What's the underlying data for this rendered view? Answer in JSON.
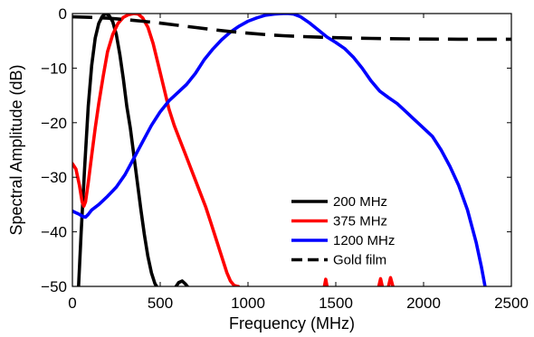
{
  "chart_data": {
    "type": "line",
    "xlabel": "Frequency (MHz)",
    "ylabel": "Spectral Amplitude (dB)",
    "xlim": [
      0,
      2500
    ],
    "ylim": [
      -50,
      0
    ],
    "xticks": [
      0,
      500,
      1000,
      1500,
      2000,
      2500
    ],
    "yticks": [
      0,
      -10,
      -20,
      -30,
      -40,
      -50
    ],
    "xtick_labels": [
      "0",
      "500",
      "1000",
      "1500",
      "2000",
      "2500"
    ],
    "ytick_labels": [
      "0",
      "−10",
      "−20",
      "−30",
      "−40",
      "−50"
    ],
    "grid": false,
    "legend_position": "bottom-right",
    "series": [
      {
        "name": "200 MHz",
        "color": "#000000",
        "dash": "solid",
        "x": [
          35,
          50,
          70,
          90,
          110,
          130,
          150,
          170,
          190,
          210,
          230,
          250,
          270,
          290,
          310,
          330,
          350,
          370,
          390,
          410,
          430,
          450,
          470,
          480
        ],
        "y": [
          -50,
          -40,
          -28,
          -17,
          -9.5,
          -4.5,
          -1.8,
          -0.5,
          0,
          -0.4,
          -1.5,
          -3.8,
          -7.5,
          -12,
          -17,
          -21,
          -26,
          -31,
          -36,
          -40.5,
          -44.5,
          -47.5,
          -49.5,
          -50
        ]
      },
      {
        "name": "200 MHz",
        "color": "#000000",
        "dash": "solid",
        "x": [
          590,
          605,
          625,
          645,
          655
        ],
        "y": [
          -50,
          -49.3,
          -49,
          -49.6,
          -50
        ]
      },
      {
        "name": "375 MHz",
        "color": "#ff0000",
        "dash": "solid",
        "x": [
          0,
          20,
          40,
          55,
          65,
          75,
          90,
          110,
          130,
          150,
          175,
          200,
          230,
          260,
          290,
          320,
          350,
          375,
          400,
          430,
          460,
          490,
          520,
          550,
          580,
          610,
          640,
          670,
          700,
          730,
          760,
          790,
          820,
          850,
          880,
          900,
          920,
          940,
          945
        ],
        "y": [
          -27.5,
          -28.5,
          -31.5,
          -34.5,
          -35.3,
          -34.5,
          -31,
          -26,
          -21,
          -16.5,
          -11.5,
          -7,
          -3.8,
          -1.8,
          -0.7,
          -0.2,
          0,
          -0.1,
          -0.8,
          -2.5,
          -5.5,
          -9.5,
          -13.5,
          -17.5,
          -20.5,
          -23,
          -25.5,
          -28,
          -30.5,
          -33,
          -35.5,
          -38.5,
          -41.5,
          -44.5,
          -47.5,
          -49,
          -49.8,
          -50,
          -50
        ]
      },
      {
        "name": "375 MHz",
        "color": "#ff0000",
        "dash": "solid",
        "x": [
          1435,
          1443,
          1450
        ],
        "y": [
          -50,
          -48.7,
          -50
        ]
      },
      {
        "name": "375 MHz",
        "color": "#ff0000",
        "dash": "solid",
        "x": [
          1745,
          1755,
          1765
        ],
        "y": [
          -50,
          -48.6,
          -50
        ]
      },
      {
        "name": "375 MHz",
        "color": "#ff0000",
        "dash": "solid",
        "x": [
          1800,
          1812,
          1825
        ],
        "y": [
          -50,
          -48.4,
          -50
        ]
      },
      {
        "name": "1200 MHz",
        "color": "#0000ff",
        "dash": "solid",
        "x": [
          0,
          20,
          40,
          60,
          75,
          90,
          110,
          150,
          200,
          250,
          300,
          350,
          400,
          450,
          500,
          550,
          600,
          650,
          700,
          750,
          800,
          850,
          900,
          950,
          1000,
          1050,
          1100,
          1150,
          1200,
          1230,
          1260,
          1300,
          1350,
          1400,
          1450,
          1500,
          1550,
          1600,
          1650,
          1700,
          1750,
          1800,
          1850,
          1900,
          1950,
          2000,
          2050,
          2100,
          2150,
          2200,
          2250,
          2300,
          2330,
          2350
        ],
        "y": [
          -36.2,
          -36.5,
          -36.8,
          -37.2,
          -37.3,
          -36.8,
          -36,
          -35,
          -33.5,
          -31.8,
          -29.5,
          -26.5,
          -23.5,
          -20.5,
          -18,
          -16,
          -14.5,
          -13,
          -11,
          -8.5,
          -6.5,
          -4.8,
          -3.4,
          -2.3,
          -1.4,
          -0.8,
          -0.3,
          -0.1,
          0,
          0,
          -0.1,
          -0.6,
          -1.7,
          -3,
          -4.3,
          -5.3,
          -6.4,
          -8,
          -10,
          -12.3,
          -14.2,
          -15.4,
          -16.5,
          -18,
          -19.5,
          -21,
          -22.5,
          -25,
          -28,
          -31.5,
          -36,
          -42,
          -46.5,
          -50
        ]
      },
      {
        "name": "Gold film",
        "color": "#000000",
        "dash": "dashed",
        "x": [
          0,
          100,
          200,
          300,
          400,
          500,
          600,
          700,
          800,
          900,
          1000,
          1100,
          1200,
          1300,
          1400,
          1500,
          1600,
          1700,
          1800,
          1900,
          2000,
          2100,
          2200,
          2300,
          2400,
          2500
        ],
        "y": [
          -0.6,
          -0.7,
          -0.85,
          -1.1,
          -1.4,
          -1.75,
          -2.15,
          -2.55,
          -2.95,
          -3.3,
          -3.6,
          -3.85,
          -4.05,
          -4.2,
          -4.32,
          -4.42,
          -4.5,
          -4.56,
          -4.6,
          -4.64,
          -4.67,
          -4.69,
          -4.7,
          -4.7,
          -4.7,
          -4.7
        ]
      }
    ],
    "legend": [
      {
        "label": "200 MHz",
        "color": "#000000",
        "dash": "solid"
      },
      {
        "label": "375 MHz",
        "color": "#ff0000",
        "dash": "solid"
      },
      {
        "label": "1200 MHz",
        "color": "#0000ff",
        "dash": "solid"
      },
      {
        "label": "Gold film",
        "color": "#000000",
        "dash": "dashed"
      }
    ]
  }
}
